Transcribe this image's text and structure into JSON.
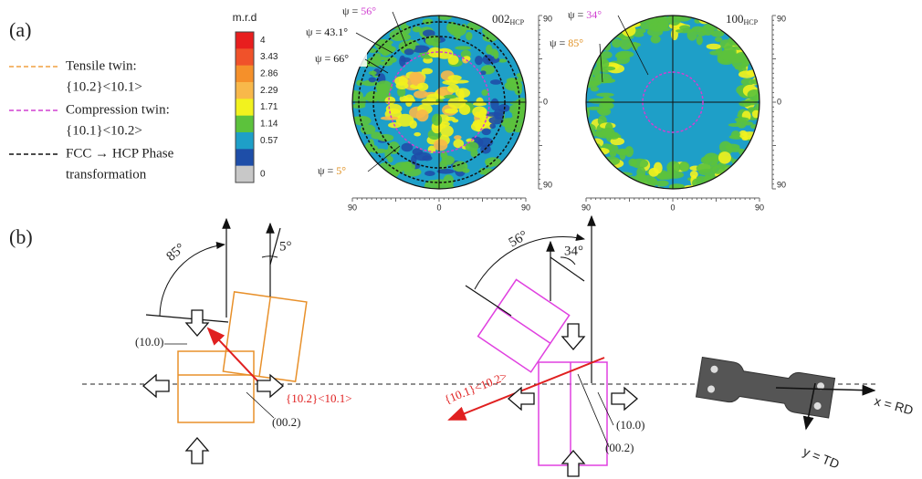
{
  "panel_a": {
    "label": "(a)",
    "legend": [
      {
        "lines": [
          "Tensile twin:",
          "{10.2}<10.1>"
        ],
        "color": "#f0a040"
      },
      {
        "lines": [
          "Compression twin:",
          "{10.1}<10.2>"
        ],
        "color": "#d040d0"
      },
      {
        "lines": [
          "FCC → HCP Phase",
          "transformation"
        ],
        "color": "#111111"
      }
    ],
    "colorbar": {
      "title": "m.r.d",
      "ticks": [
        4,
        3.43,
        2.86,
        2.29,
        1.71,
        1.14,
        0.57,
        0
      ],
      "colors": [
        "#e81e1e",
        "#f0522a",
        "#f5902a",
        "#f8b84a",
        "#f2f21e",
        "#5cc23c",
        "#1e9fc8",
        "#1e4ea8",
        "#c8c8c8"
      ]
    },
    "pole_figures": [
      {
        "title": "002",
        "subscript": "HCP",
        "right_ticks": [
          90,
          0,
          90
        ],
        "bottom_ticks": [
          90,
          0,
          90
        ],
        "annotations": [
          {
            "symbol": "ψ =",
            "value": "56°",
            "color": "#d040d0"
          },
          {
            "symbol": "ψ =",
            "value": "43.1°",
            "color": "#111111"
          },
          {
            "symbol": "ψ =",
            "value": "66°",
            "color": "#111111"
          },
          {
            "symbol": "ψ =",
            "value": "5°",
            "color": "#e09020"
          }
        ]
      },
      {
        "title": "100",
        "subscript": "HCP",
        "right_ticks": [
          90,
          0,
          90
        ],
        "bottom_ticks": [
          90,
          0,
          90
        ],
        "annotations": [
          {
            "symbol": "ψ =",
            "value": "34°",
            "color": "#d040d0"
          },
          {
            "symbol": "ψ =",
            "value": "85°",
            "color": "#e09020"
          }
        ]
      }
    ]
  },
  "panel_b": {
    "label": "(b)",
    "tensile": {
      "angle_large": "85°",
      "angle_small": "5°",
      "prism": "(10.0)",
      "system": "{10.2}<10.1>",
      "basal": "(00.2)"
    },
    "compression": {
      "angle_large": "56°",
      "angle_small": "34°",
      "system": "{10.1}<10.2>",
      "prism": "(10.0)",
      "basal": "(00.2)"
    },
    "axes": {
      "x": "x = RD",
      "y": "y = TD"
    }
  }
}
